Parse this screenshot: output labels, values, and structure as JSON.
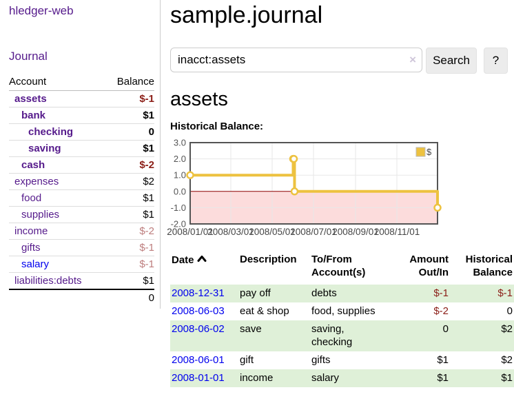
{
  "colors": {
    "link_visited": "#551A8B",
    "link_unvisited": "#0000EE",
    "negative_strong": "#8b1e17",
    "negative_dim": "#bd7d7d",
    "row_green": "#dff0d8",
    "chart_line": "#edc240",
    "chart_negative_fill": "#fcdcdc",
    "chart_zero_line": "#8b0000",
    "chart_border": "#545454",
    "chart_grid": "#e7e7e7"
  },
  "sidebar": {
    "brand": "hledger-web",
    "journal_link": "Journal",
    "accounts_header": {
      "account": "Account",
      "balance": "Balance"
    },
    "accounts": [
      {
        "name": "assets",
        "balance": "$-1",
        "depth": 0,
        "bold": true
      },
      {
        "name": "bank",
        "balance": "$1",
        "depth": 1,
        "bold": true
      },
      {
        "name": "checking",
        "balance": "0",
        "depth": 2,
        "bold": true
      },
      {
        "name": "saving",
        "balance": "$1",
        "depth": 2,
        "bold": true
      },
      {
        "name": "cash",
        "balance": "$-2",
        "depth": 1,
        "bold": true
      },
      {
        "name": "expenses",
        "balance": "$2",
        "depth": 0,
        "bold": false
      },
      {
        "name": "food",
        "balance": "$1",
        "depth": 1,
        "bold": false
      },
      {
        "name": "supplies",
        "balance": "$1",
        "depth": 1,
        "bold": false
      },
      {
        "name": "income",
        "balance": "$-2",
        "depth": 0,
        "bold": false
      },
      {
        "name": "gifts",
        "balance": "$-1",
        "depth": 1,
        "bold": false
      },
      {
        "name": "salary",
        "balance": "$-1",
        "depth": 1,
        "bold": false,
        "unvisited": true
      },
      {
        "name": "liabilities:debts",
        "balance": "$1",
        "depth": 0,
        "bold": false
      }
    ],
    "total": "0"
  },
  "header": {
    "title": "sample.journal"
  },
  "search": {
    "value": "inacct:assets",
    "clear_icon": "×",
    "button": "Search",
    "help_button": "?"
  },
  "account_page": {
    "heading": "assets",
    "chart_label": "Historical Balance:"
  },
  "chart_data": {
    "type": "line",
    "title": "Historical Balance",
    "line_style": "step-after",
    "grid": true,
    "negative_region_shaded": true,
    "x_range": [
      "2008-01-01",
      "2008-12-31"
    ],
    "ylim": [
      -2,
      3
    ],
    "y_ticks": [
      "3.0",
      "2.0",
      "1.0",
      "0.0",
      "-1.0",
      "-2.0"
    ],
    "x_ticks": [
      {
        "date": "2008-01-01",
        "label": "2008/01/01"
      },
      {
        "date": "2008-03-01",
        "label": "2008/03/01"
      },
      {
        "date": "2008-05-01",
        "label": "2008/05/01"
      },
      {
        "date": "2008-07-01",
        "label": "2008/07/01"
      },
      {
        "date": "2008-09-01",
        "label": "2008/09/01"
      },
      {
        "date": "2008-11-01",
        "label": "2008/11/01"
      }
    ],
    "legend": {
      "label": "$",
      "position": "top-right"
    },
    "series": [
      {
        "name": "$",
        "points": [
          {
            "date": "2008-01-01",
            "value": 1
          },
          {
            "date": "2008-06-01",
            "value": 2
          },
          {
            "date": "2008-06-02",
            "value": 2
          },
          {
            "date": "2008-06-03",
            "value": 0
          },
          {
            "date": "2008-12-31",
            "value": -1
          }
        ]
      }
    ]
  },
  "register": {
    "columns": [
      "Date",
      "Description",
      "To/From Account(s)",
      "Amount Out/In",
      "Historical Balance"
    ],
    "sort_icon": "chevron-up",
    "rows": [
      {
        "date": "2008-12-31",
        "description": "pay off",
        "accounts": "debts",
        "amount": "$-1",
        "balance": "$-1"
      },
      {
        "date": "2008-06-03",
        "description": "eat & shop",
        "accounts": "food, supplies",
        "amount": "$-2",
        "balance": "0"
      },
      {
        "date": "2008-06-02",
        "description": "save",
        "accounts": "saving, checking",
        "amount": "0",
        "balance": "$2"
      },
      {
        "date": "2008-06-01",
        "description": "gift",
        "accounts": "gifts",
        "amount": "$1",
        "balance": "$2"
      },
      {
        "date": "2008-01-01",
        "description": "income",
        "accounts": "salary",
        "amount": "$1",
        "balance": "$1"
      }
    ]
  }
}
